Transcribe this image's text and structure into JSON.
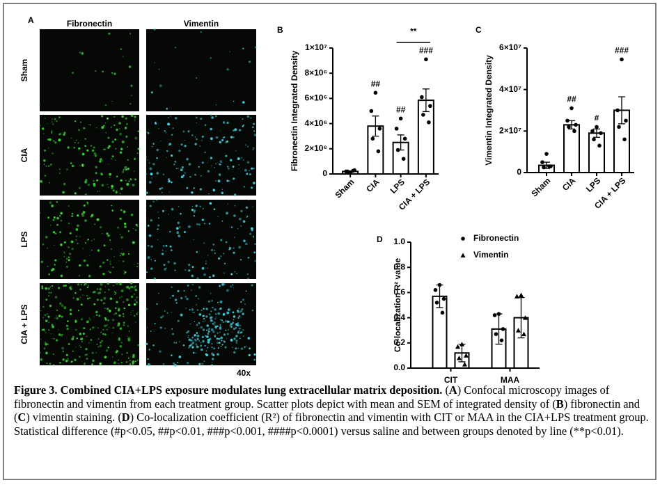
{
  "panel_a": {
    "label": "A",
    "columns": [
      "Fibronectin",
      "Vimentin"
    ],
    "rows": [
      "Sham",
      "CIA",
      "LPS",
      "CIA + LPS"
    ],
    "magnification": "40x"
  },
  "chart_data": [
    {
      "type": "bar",
      "panel": "B",
      "ylabel": "Fibronectin Integrated Density",
      "categories": [
        "Sham",
        "CIA",
        "LPS",
        "CIA + LPS"
      ],
      "values": [
        200000,
        3800000,
        2500000,
        5850000
      ],
      "errors": [
        50000,
        800000,
        600000,
        900000
      ],
      "points": [
        [
          100000,
          200000,
          300000,
          200000,
          250000
        ],
        [
          6450000,
          5000000,
          3600000,
          2800000,
          1800000
        ],
        [
          4400000,
          3600000,
          2800000,
          1900000,
          1200000
        ],
        [
          9100000,
          6100000,
          5400000,
          4700000,
          4100000
        ]
      ],
      "annotations": [
        null,
        "##",
        "##",
        "###"
      ],
      "comparisons": [
        {
          "between": [
            "LPS",
            "CIA + LPS"
          ],
          "text": "**"
        }
      ],
      "ylim": [
        0,
        10000000
      ],
      "yticks": [
        0,
        {
          "value": 2000000,
          "label": "2×10⁶"
        },
        {
          "value": 4000000,
          "label": "4×10⁶"
        },
        {
          "value": 6000000,
          "label": "6×10⁶"
        },
        {
          "value": 8000000,
          "label": "8×10⁶"
        },
        {
          "value": 10000000,
          "label": "1×10⁷"
        }
      ]
    },
    {
      "type": "bar",
      "panel": "C",
      "ylabel": "Vimentin Integrated Density",
      "categories": [
        "Sham",
        "CIA",
        "LPS",
        "CIA + LPS"
      ],
      "values": [
        3500000,
        23000000,
        19000000,
        30000000
      ],
      "errors": [
        1500000,
        2000000,
        2000000,
        6500000
      ],
      "points": [
        [
          9000000,
          5000000,
          3000000,
          2500000,
          3000000
        ],
        [
          31000000,
          25000000,
          23000000,
          22000000,
          20000000
        ],
        [
          22000000,
          20000000,
          19000000,
          16000000,
          13000000
        ],
        [
          54500000,
          30000000,
          25000000,
          22000000,
          16000000
        ]
      ],
      "annotations": [
        null,
        "##",
        "#",
        "###"
      ],
      "ylim": [
        0,
        60000000
      ],
      "yticks": [
        0,
        {
          "value": 20000000,
          "label": "2×10⁷"
        },
        {
          "value": 40000000,
          "label": "4×10⁷"
        },
        {
          "value": 60000000,
          "label": "6×10⁷"
        }
      ]
    },
    {
      "type": "bar",
      "panel": "D",
      "ylabel": "Co-localization R² value",
      "categories": [
        "CIT",
        "MAA"
      ],
      "series": [
        {
          "name": "Fibronectin",
          "marker": "circle",
          "values": [
            0.57,
            0.31
          ],
          "errors": [
            0.09,
            0.12
          ],
          "points": [
            [
              0.66,
              0.62,
              0.55,
              0.52,
              0.44
            ],
            [
              0.43,
              0.42,
              0.31,
              0.27,
              0.22
            ]
          ]
        },
        {
          "name": "Vimentin",
          "marker": "triangle",
          "values": [
            0.12,
            0.4
          ],
          "errors": [
            0.07,
            0.16
          ],
          "points": [
            [
              0.19,
              0.17,
              0.1,
              0.08,
              0.03
            ],
            [
              0.58,
              0.57,
              0.4,
              0.3,
              0.27
            ]
          ]
        }
      ],
      "ylim": [
        0,
        1
      ],
      "yticks": [
        {
          "value": 0,
          "label": "0.0"
        },
        0.2,
        0.4,
        0.6,
        0.8,
        {
          "value": 1,
          "label": "1.0"
        }
      ]
    }
  ],
  "caption": [
    {
      "text": "Figure 3. Combined CIA+LPS exposure modulates lung extracellular matrix deposition.",
      "bold": true
    },
    {
      "text": " (",
      "bold": false
    },
    {
      "text": "A",
      "bold": true
    },
    {
      "text": ") Confocal microscopy images of fibronectin and vimentin from each treatment group. Scatter plots depict with mean and SEM of integrated density of (",
      "bold": false
    },
    {
      "text": "B",
      "bold": true
    },
    {
      "text": ") fibronectin and (",
      "bold": false
    },
    {
      "text": "C",
      "bold": true
    },
    {
      "text": ") vimentin staining. (",
      "bold": false
    },
    {
      "text": "D",
      "bold": true
    },
    {
      "text": ") Co-localization coefficient (R²) of fibronectin and vimentin with CIT or MAA in the CIA+LPS treatment group. Statistical difference (#p<0.05, ##p<0.01, ###p<0.001, ####p<0.0001) versus saline and between groups denoted by line (**p<0.01).",
      "bold": false
    }
  ]
}
